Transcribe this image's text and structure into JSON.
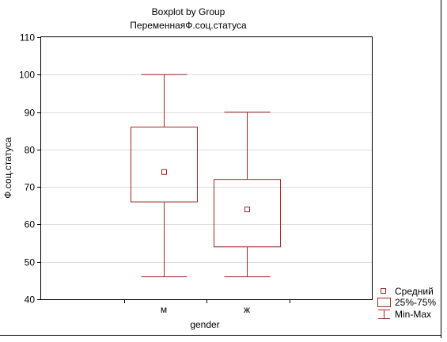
{
  "chart_data": {
    "type": "boxplot",
    "title": "Boxplot by Group",
    "subtitle": "ПеременнаяФ.соц.статуса",
    "xlabel": "gender",
    "ylabel": "Ф.соц.статуса",
    "ylim": [
      40,
      110
    ],
    "yticks": [
      40,
      50,
      60,
      70,
      80,
      90,
      100,
      110
    ],
    "grid": true,
    "legend_position": "bottom-right",
    "categories": [
      "м",
      "ж"
    ],
    "boxes": [
      {
        "category": "м",
        "min": 46,
        "q1": 66,
        "mean": 74,
        "q3": 86,
        "max": 100
      },
      {
        "category": "ж",
        "min": 46,
        "q1": 54,
        "mean": 64,
        "q3": 72,
        "max": 90
      }
    ],
    "legend": {
      "mean_label": "Средний",
      "box_label": "25%-75%",
      "range_label": "Min-Max"
    },
    "color": "#a02828"
  }
}
